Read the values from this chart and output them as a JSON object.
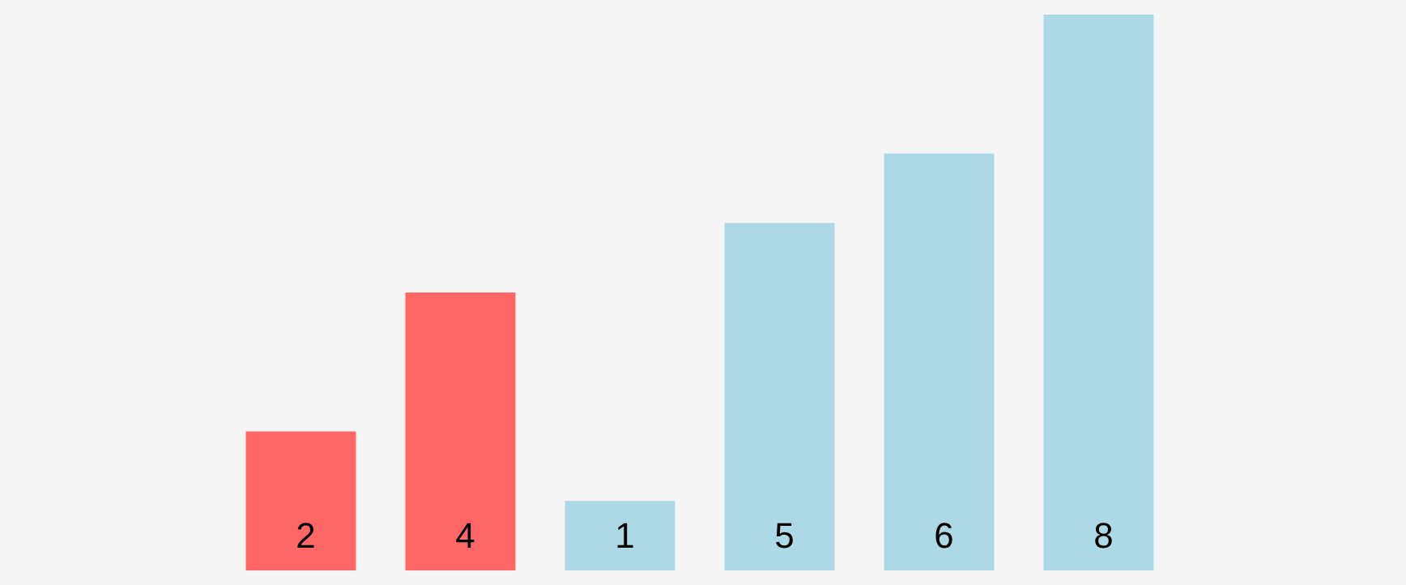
{
  "chart_data": {
    "type": "bar",
    "categories": [
      null,
      null,
      null,
      null,
      null,
      null
    ],
    "values": [
      2,
      4,
      1,
      5,
      6,
      8
    ],
    "colors": [
      "#ff6666",
      "#ff6666",
      "#add8e6",
      "#add8e6",
      "#add8e6",
      "#add8e6"
    ],
    "data_labels": true
  }
}
